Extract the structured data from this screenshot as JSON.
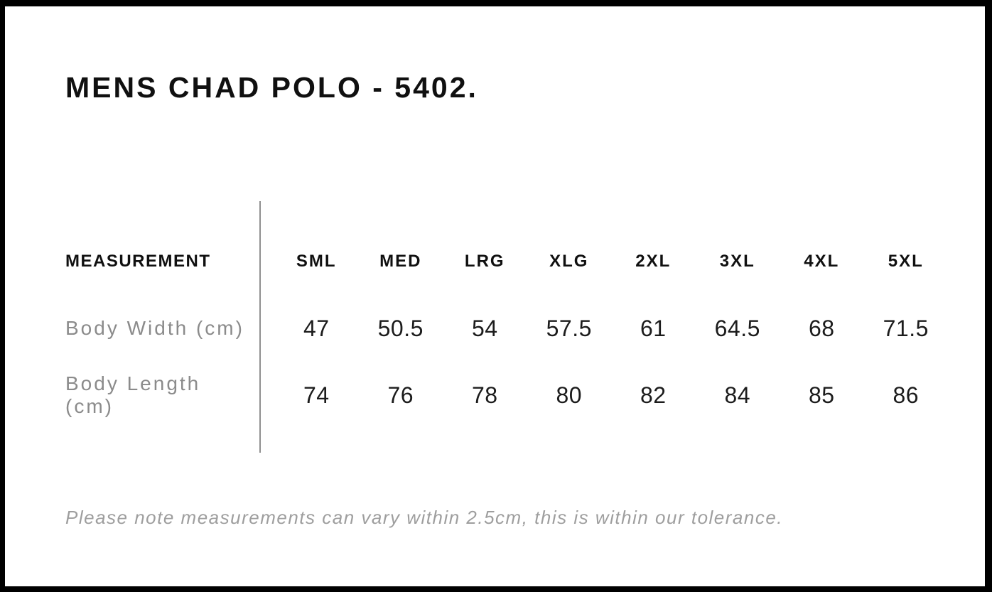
{
  "page": {
    "title": "MENS CHAD POLO - 5402.",
    "tolerance_note": "Please note measurements can vary within 2.5cm, this is within our tolerance."
  },
  "size_chart": {
    "measurement_header": "MEASUREMENT",
    "sizes": [
      "SML",
      "MED",
      "LRG",
      "XLG",
      "2XL",
      "3XL",
      "4XL",
      "5XL"
    ],
    "rows": [
      {
        "label": "Body Width (cm)",
        "values": [
          "47",
          "50.5",
          "54",
          "57.5",
          "61",
          "64.5",
          "68",
          "71.5"
        ]
      },
      {
        "label": "Body Length (cm)",
        "values": [
          "74",
          "76",
          "78",
          "80",
          "82",
          "84",
          "85",
          "86"
        ]
      }
    ]
  },
  "chart_data": {
    "type": "table",
    "title": "MENS CHAD POLO - 5402.",
    "columns": [
      "MEASUREMENT",
      "SML",
      "MED",
      "LRG",
      "XLG",
      "2XL",
      "3XL",
      "4XL",
      "5XL"
    ],
    "series": [
      {
        "name": "Body Width (cm)",
        "values": [
          47,
          50.5,
          54,
          57.5,
          61,
          64.5,
          68,
          71.5
        ]
      },
      {
        "name": "Body Length (cm)",
        "values": [
          74,
          76,
          78,
          80,
          82,
          84,
          85,
          86
        ]
      }
    ],
    "annotations": [
      "Please note measurements can vary within 2.5cm, this is within our tolerance."
    ]
  },
  "colors": {
    "frame": "#000000",
    "bg": "#ffffff",
    "ink": "#101010",
    "value-ink": "#1c1c1c",
    "label-gray": "#8b8b8b",
    "note-gray": "#9e9e9e",
    "divider": "#909090"
  }
}
